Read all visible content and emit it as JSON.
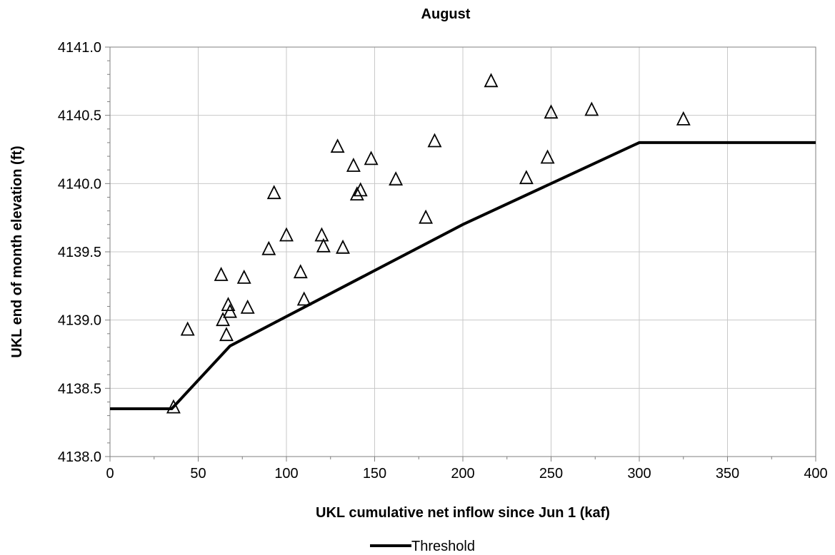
{
  "chart_data": {
    "type": "scatter",
    "title": "August",
    "xlabel": "UKL cumulative net inflow since Jun 1 (kaf)",
    "ylabel": "UKL end of month elevation (ft)",
    "xlim": [
      0,
      400
    ],
    "ylim": [
      4138.0,
      4141.0
    ],
    "x_ticks": [
      0,
      50,
      100,
      150,
      200,
      250,
      300,
      350,
      400
    ],
    "y_ticks": [
      4138.0,
      4138.5,
      4139.0,
      4139.5,
      4140.0,
      4140.5,
      4141.0
    ],
    "x_tick_labels": [
      "0",
      "50",
      "100",
      "150",
      "200",
      "250",
      "300",
      "350",
      "400"
    ],
    "y_tick_labels": [
      "4138.0",
      "4138.5",
      "4139.0",
      "4139.5",
      "4140.0",
      "4140.5",
      "4141.0"
    ],
    "grid": true,
    "legend_position": "bottom",
    "series": [
      {
        "type": "scatter",
        "marker": "triangle-open",
        "color": "#000000",
        "points": [
          [
            36,
            4138.36
          ],
          [
            44,
            4138.93
          ],
          [
            63,
            4139.33
          ],
          [
            64,
            4139.0
          ],
          [
            66,
            4138.89
          ],
          [
            67,
            4139.11
          ],
          [
            68,
            4139.06
          ],
          [
            76,
            4139.31
          ],
          [
            78,
            4139.09
          ],
          [
            90,
            4139.52
          ],
          [
            93,
            4139.93
          ],
          [
            100,
            4139.62
          ],
          [
            108,
            4139.35
          ],
          [
            110,
            4139.15
          ],
          [
            120,
            4139.62
          ],
          [
            121,
            4139.54
          ],
          [
            129,
            4140.27
          ],
          [
            132,
            4139.53
          ],
          [
            138,
            4140.13
          ],
          [
            140,
            4139.92
          ],
          [
            142,
            4139.95
          ],
          [
            148,
            4140.18
          ],
          [
            162,
            4140.03
          ],
          [
            179,
            4139.75
          ],
          [
            184,
            4140.31
          ],
          [
            216,
            4140.75
          ],
          [
            236,
            4140.04
          ],
          [
            248,
            4140.19
          ],
          [
            250,
            4140.52
          ],
          [
            273,
            4140.54
          ],
          [
            325,
            4140.47
          ]
        ]
      },
      {
        "name": "Threshold",
        "type": "line",
        "color": "#000000",
        "points": [
          [
            0,
            4138.35
          ],
          [
            35,
            4138.35
          ],
          [
            68,
            4138.81
          ],
          [
            200,
            4139.7
          ],
          [
            300,
            4140.3
          ],
          [
            400,
            4140.3
          ]
        ]
      }
    ]
  }
}
